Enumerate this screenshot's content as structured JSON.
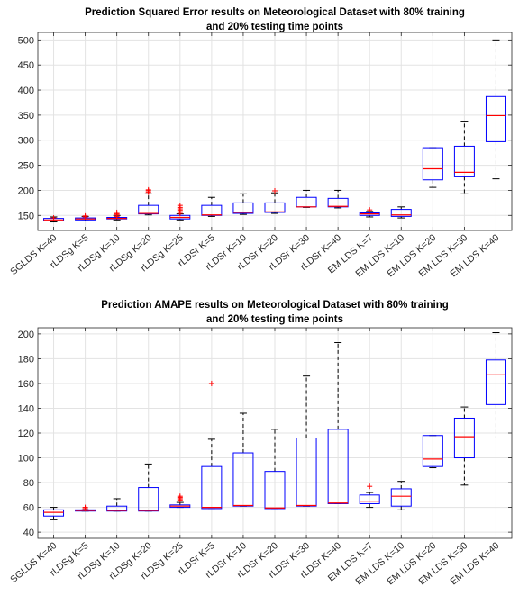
{
  "chart_data": [
    {
      "type": "box",
      "title_lines": [
        "Prediction Squared Error results on Meteorological Dataset with 80% training",
        "and 20% testing time points"
      ],
      "categories": [
        "SGLDS K=40",
        "rLDSg K=5",
        "rLDSg K=10",
        "rLDSg K=20",
        "rLDSg K=25",
        "rLDSr K=5",
        "rLDSr K=10",
        "rLDSr K=20",
        "rLDSr K=30",
        "rLDSr K=40",
        "EM LDS K=7",
        "EM LDS K=10",
        "EM LDS K=20",
        "EM LDS K=30",
        "EM LDS K=40"
      ],
      "ylim": [
        120,
        515
      ],
      "yticks": [
        150,
        200,
        250,
        300,
        350,
        400,
        450,
        500
      ],
      "grid": true,
      "colors": {
        "box": "#0000ff",
        "median": "#ff0000",
        "whisker": "#000000",
        "outlier": "#ff0000"
      },
      "boxes": [
        {
          "wlo": 137,
          "q1": 139,
          "median": 141,
          "q3": 144,
          "whi": 147,
          "outliers": [
            145
          ]
        },
        {
          "wlo": 139,
          "q1": 141,
          "median": 143,
          "q3": 145,
          "whi": 148,
          "outliers": [
            147,
            149
          ]
        },
        {
          "wlo": 141,
          "q1": 143,
          "median": 144,
          "q3": 146,
          "whi": 150,
          "outliers": [
            148,
            151,
            153,
            156
          ]
        },
        {
          "wlo": 151,
          "q1": 153,
          "median": 154,
          "q3": 170,
          "whi": 193,
          "outliers": [
            196,
            199,
            201
          ]
        },
        {
          "wlo": 141,
          "q1": 143,
          "median": 146,
          "q3": 150,
          "whi": 153,
          "outliers": [
            154,
            157,
            160,
            163,
            166,
            170
          ]
        },
        {
          "wlo": 148,
          "q1": 150,
          "median": 151,
          "q3": 170,
          "whi": 186,
          "outliers": []
        },
        {
          "wlo": 152,
          "q1": 154,
          "median": 156,
          "q3": 175,
          "whi": 193,
          "outliers": []
        },
        {
          "wlo": 154,
          "q1": 156,
          "median": 157,
          "q3": 175,
          "whi": 195,
          "outliers": [
            199
          ]
        },
        {
          "wlo": 166,
          "q1": 167,
          "median": 167,
          "q3": 186,
          "whi": 200,
          "outliers": []
        },
        {
          "wlo": 165,
          "q1": 167,
          "median": 168,
          "q3": 184,
          "whi": 200,
          "outliers": []
        },
        {
          "wlo": 147,
          "q1": 150,
          "median": 153,
          "q3": 155,
          "whi": 158,
          "outliers": [
            161
          ]
        },
        {
          "wlo": 145,
          "q1": 148,
          "median": 151,
          "q3": 162,
          "whi": 167,
          "outliers": []
        },
        {
          "wlo": 206,
          "q1": 221,
          "median": 243,
          "q3": 285,
          "whi": 285,
          "outliers": []
        },
        {
          "wlo": 193,
          "q1": 227,
          "median": 236,
          "q3": 288,
          "whi": 338,
          "outliers": []
        },
        {
          "wlo": 223,
          "q1": 297,
          "median": 349,
          "q3": 387,
          "whi": 500,
          "outliers": []
        }
      ]
    },
    {
      "type": "box",
      "title_lines": [
        "Prediction AMAPE results on Meteorological Dataset with 80% training",
        "and 20% testing time points"
      ],
      "categories": [
        "SGLDS K=40",
        "rLDSg K=5",
        "rLDSg K=10",
        "rLDSg K=20",
        "rLDSg K=25",
        "rLDSr K=5",
        "rLDSr K=10",
        "rLDSr K=20",
        "rLDSr K=30",
        "rLDSr K=40",
        "EM LDS K=7",
        "EM LDS K=10",
        "EM LDS K=20",
        "EM LDS K=30",
        "EM LDS K=40"
      ],
      "ylim": [
        35,
        205
      ],
      "yticks": [
        40,
        60,
        80,
        100,
        120,
        140,
        160,
        180,
        200
      ],
      "grid": true,
      "colors": {
        "box": "#0000ff",
        "median": "#ff0000",
        "whisker": "#000000",
        "outlier": "#ff0000"
      },
      "boxes": [
        {
          "wlo": 50,
          "q1": 53,
          "median": 56,
          "q3": 58,
          "whi": 60,
          "outliers": []
        },
        {
          "wlo": 57,
          "q1": 57,
          "median": 57.5,
          "q3": 58,
          "whi": 58,
          "outliers": [
            59,
            60
          ]
        },
        {
          "wlo": 57,
          "q1": 57,
          "median": 57.5,
          "q3": 61,
          "whi": 67,
          "outliers": []
        },
        {
          "wlo": 57,
          "q1": 57,
          "median": 57.5,
          "q3": 76,
          "whi": 95,
          "outliers": []
        },
        {
          "wlo": 60,
          "q1": 60,
          "median": 61,
          "q3": 62,
          "whi": 64,
          "outliers": [
            66,
            67,
            68,
            69
          ]
        },
        {
          "wlo": 59,
          "q1": 59,
          "median": 60,
          "q3": 93,
          "whi": 115,
          "outliers": [
            160
          ]
        },
        {
          "wlo": 61,
          "q1": 61,
          "median": 61.5,
          "q3": 104,
          "whi": 136,
          "outliers": []
        },
        {
          "wlo": 59,
          "q1": 59,
          "median": 59.5,
          "q3": 89,
          "whi": 123,
          "outliers": []
        },
        {
          "wlo": 61,
          "q1": 61,
          "median": 61.5,
          "q3": 116,
          "whi": 166,
          "outliers": []
        },
        {
          "wlo": 63,
          "q1": 63,
          "median": 63.5,
          "q3": 123,
          "whi": 193,
          "outliers": []
        },
        {
          "wlo": 60,
          "q1": 63,
          "median": 65,
          "q3": 70,
          "whi": 72,
          "outliers": [
            77
          ]
        },
        {
          "wlo": 58,
          "q1": 61,
          "median": 69,
          "q3": 75,
          "whi": 81,
          "outliers": []
        },
        {
          "wlo": 92,
          "q1": 93,
          "median": 99,
          "q3": 118,
          "whi": 118,
          "outliers": []
        },
        {
          "wlo": 78,
          "q1": 100,
          "median": 117,
          "q3": 132,
          "whi": 141,
          "outliers": []
        },
        {
          "wlo": 116,
          "q1": 143,
          "median": 167,
          "q3": 179,
          "whi": 201,
          "outliers": []
        }
      ]
    }
  ]
}
